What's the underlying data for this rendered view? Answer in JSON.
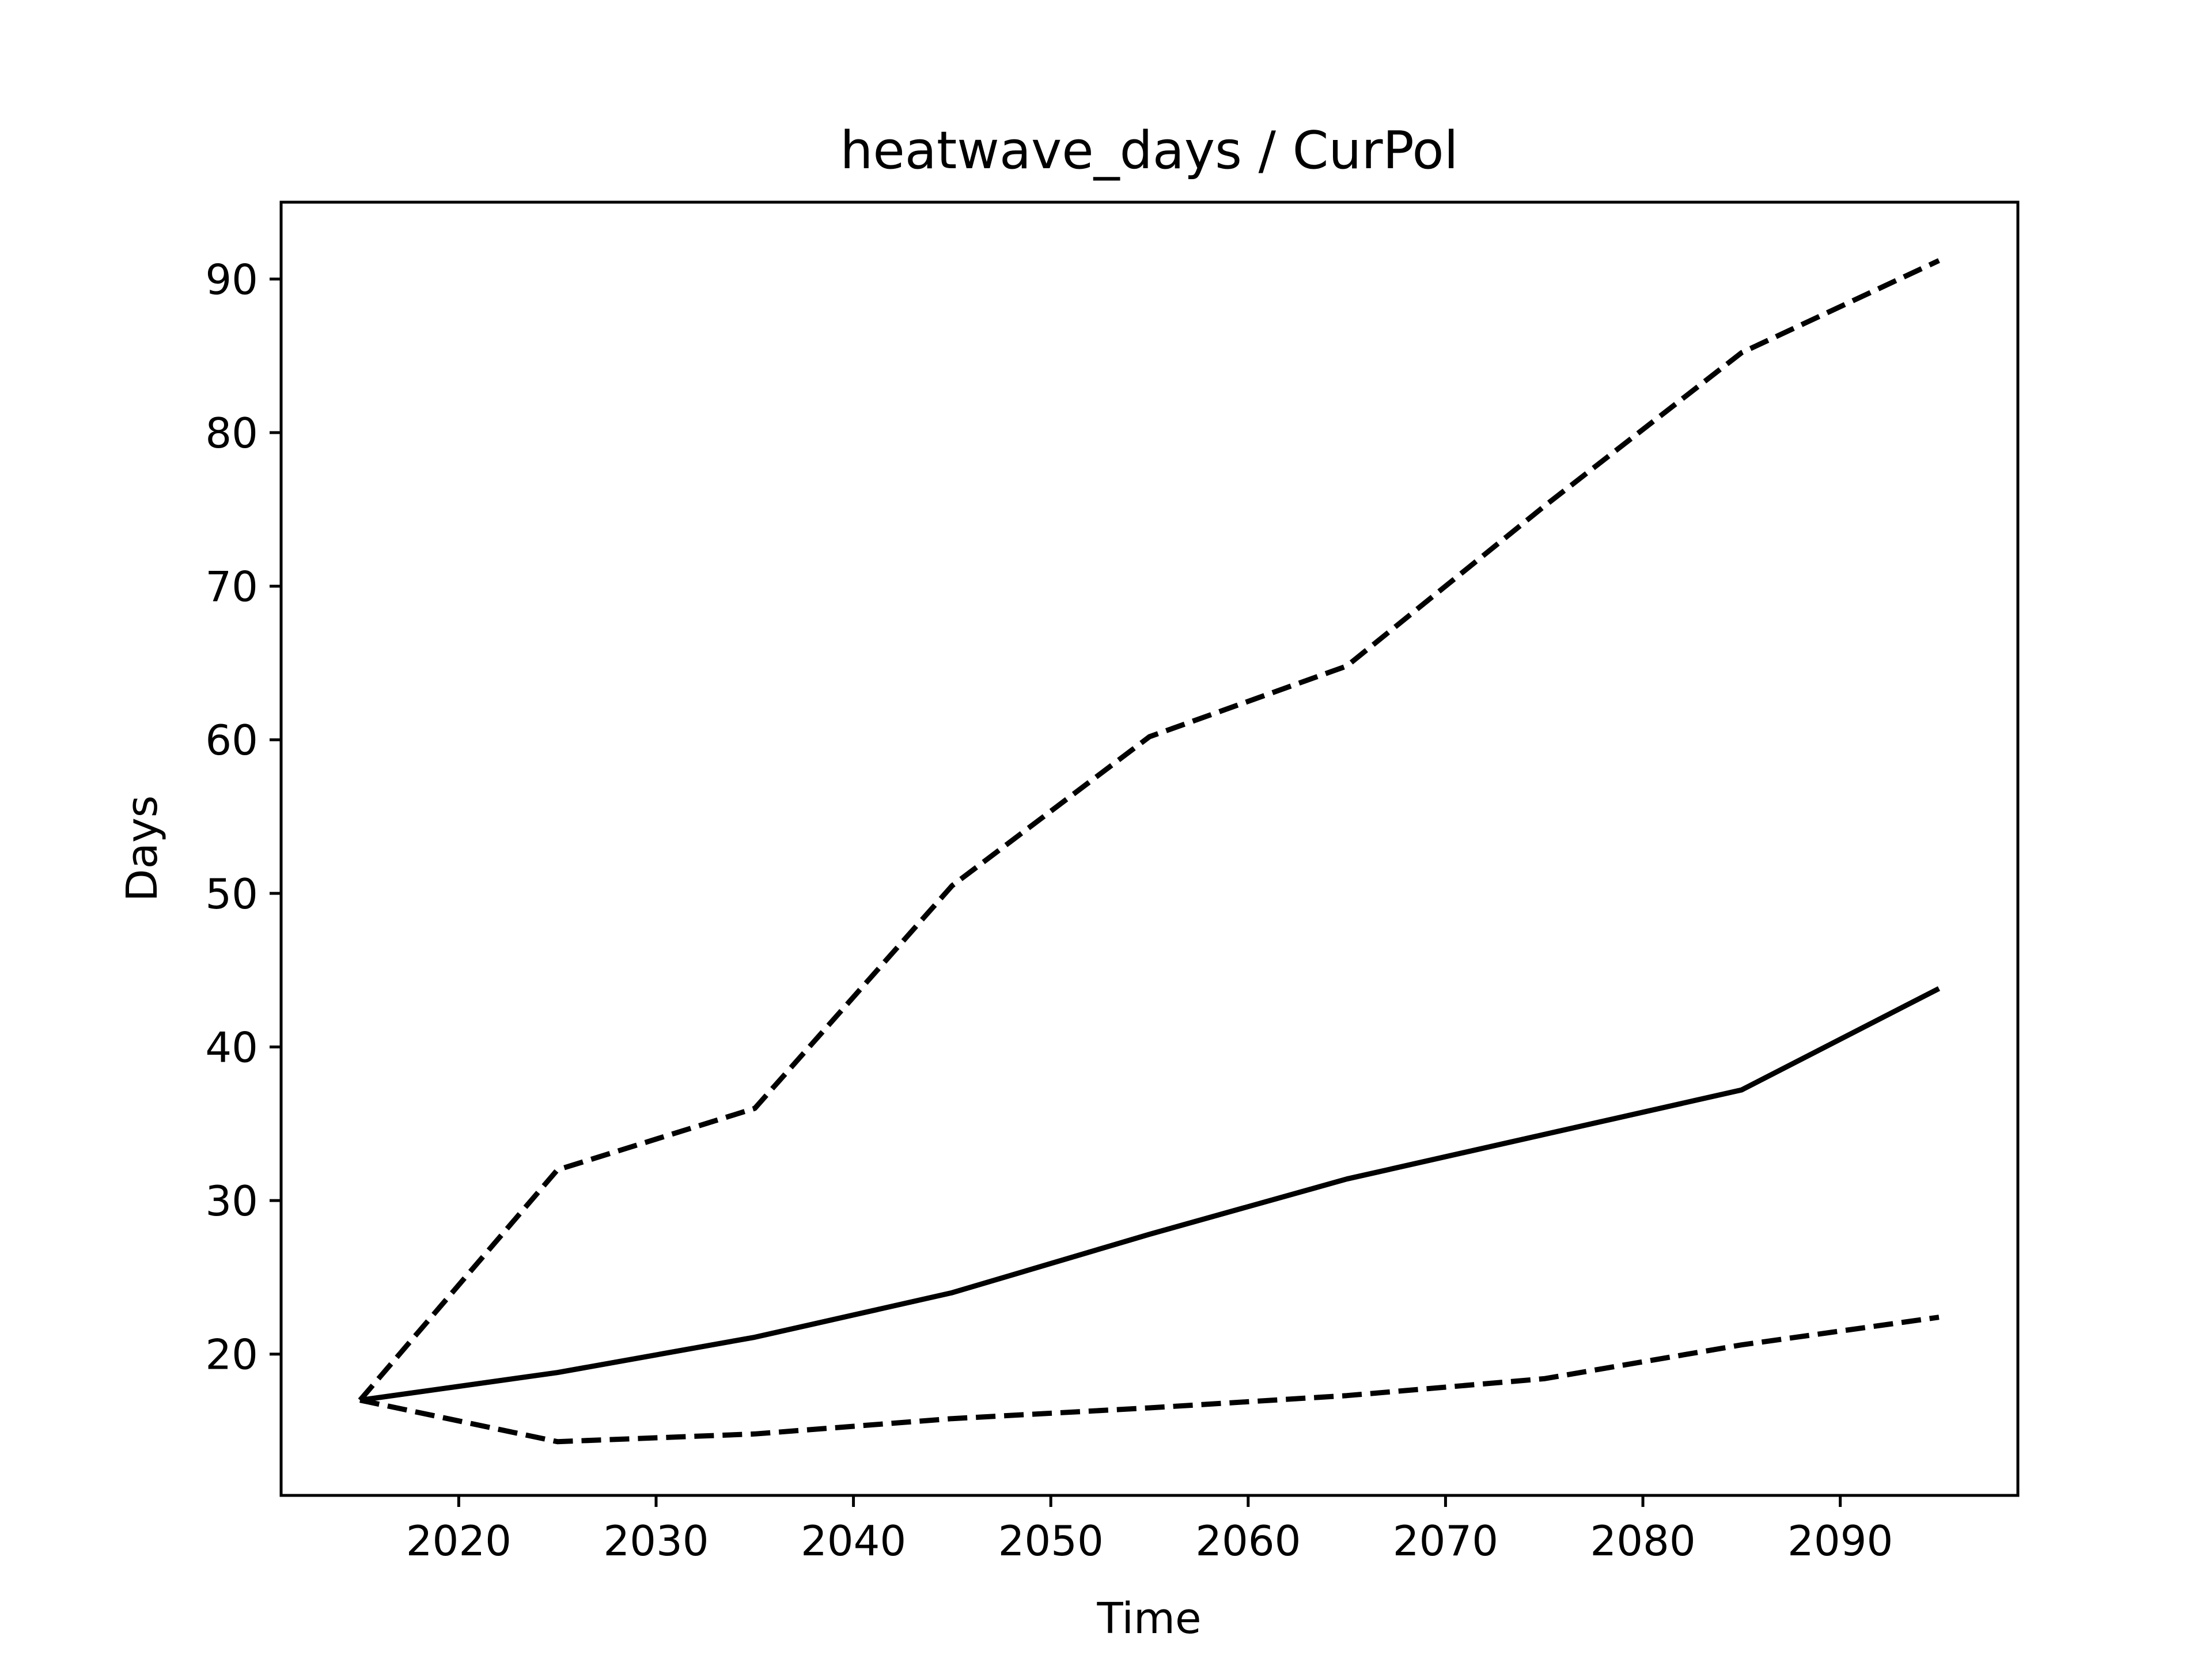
{
  "chart_data": {
    "type": "line",
    "title": "heatwave_days / CurPol",
    "xlabel": "Time",
    "ylabel": "Days",
    "xlim": [
      2011,
      2099
    ],
    "ylim": [
      10.8,
      95.0
    ],
    "xticks": [
      2020,
      2030,
      2040,
      2050,
      2060,
      2070,
      2080,
      2090
    ],
    "yticks": [
      20,
      30,
      40,
      50,
      60,
      70,
      80,
      90
    ],
    "grid": false,
    "legend": "none",
    "color": "#000000",
    "series": [
      {
        "style": "solid",
        "x": [
          2015,
          2025,
          2035,
          2045,
          2055,
          2065,
          2075,
          2085,
          2095
        ],
        "y": [
          17.0,
          18.8,
          21.1,
          24.0,
          27.8,
          31.4,
          34.3,
          37.2,
          43.8
        ]
      },
      {
        "style": "dashed",
        "x": [
          2015,
          2025,
          2035,
          2045,
          2055,
          2065,
          2075,
          2085,
          2095
        ],
        "y": [
          17.0,
          32.0,
          36.0,
          50.5,
          60.2,
          64.8,
          75.2,
          85.2,
          91.2
        ]
      },
      {
        "style": "dashed",
        "x": [
          2015,
          2025,
          2035,
          2045,
          2055,
          2065,
          2075,
          2085,
          2095
        ],
        "y": [
          17.0,
          14.3,
          14.8,
          15.8,
          16.5,
          17.3,
          18.4,
          20.6,
          22.4
        ]
      }
    ]
  }
}
